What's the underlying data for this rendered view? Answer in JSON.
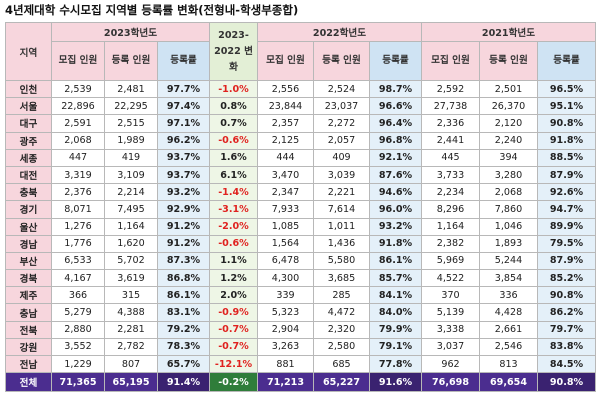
{
  "title": "4년제대학 수시모집 지역별 등록률 변화(전형내-학생부종합)",
  "header": {
    "region": "지역",
    "y2023": "2023학년도",
    "change": "2023-2022 변화",
    "y2022": "2022학년도",
    "y2021": "2021학년도",
    "recruit": "모집 인원",
    "enrolled": "등록 인원",
    "rate": "등록률"
  },
  "rows": [
    {
      "region": "인천",
      "r23": "2,539",
      "e23": "2,481",
      "rt23": "97.7%",
      "chg": "-1.0%",
      "r22": "2,556",
      "e22": "2,524",
      "rt22": "98.7%",
      "r21": "2,592",
      "e21": "2,501",
      "rt21": "96.5%"
    },
    {
      "region": "서울",
      "r23": "22,896",
      "e23": "22,295",
      "rt23": "97.4%",
      "chg": "0.8%",
      "r22": "23,844",
      "e22": "23,037",
      "rt22": "96.6%",
      "r21": "27,738",
      "e21": "26,370",
      "rt21": "95.1%"
    },
    {
      "region": "대구",
      "r23": "2,591",
      "e23": "2,515",
      "rt23": "97.1%",
      "chg": "0.7%",
      "r22": "2,357",
      "e22": "2,272",
      "rt22": "96.4%",
      "r21": "2,336",
      "e21": "2,120",
      "rt21": "90.8%"
    },
    {
      "region": "광주",
      "r23": "2,068",
      "e23": "1,989",
      "rt23": "96.2%",
      "chg": "-0.6%",
      "r22": "2,125",
      "e22": "2,057",
      "rt22": "96.8%",
      "r21": "2,441",
      "e21": "2,240",
      "rt21": "91.8%"
    },
    {
      "region": "세종",
      "r23": "447",
      "e23": "419",
      "rt23": "93.7%",
      "chg": "1.6%",
      "r22": "444",
      "e22": "409",
      "rt22": "92.1%",
      "r21": "445",
      "e21": "394",
      "rt21": "88.5%"
    },
    {
      "region": "대전",
      "r23": "3,319",
      "e23": "3,109",
      "rt23": "93.7%",
      "chg": "6.1%",
      "r22": "3,470",
      "e22": "3,039",
      "rt22": "87.6%",
      "r21": "3,733",
      "e21": "3,280",
      "rt21": "87.9%"
    },
    {
      "region": "충북",
      "r23": "2,376",
      "e23": "2,214",
      "rt23": "93.2%",
      "chg": "-1.4%",
      "r22": "2,347",
      "e22": "2,221",
      "rt22": "94.6%",
      "r21": "2,234",
      "e21": "2,068",
      "rt21": "92.6%"
    },
    {
      "region": "경기",
      "r23": "8,071",
      "e23": "7,495",
      "rt23": "92.9%",
      "chg": "-3.1%",
      "r22": "7,933",
      "e22": "7,614",
      "rt22": "96.0%",
      "r21": "8,296",
      "e21": "7,860",
      "rt21": "94.7%"
    },
    {
      "region": "울산",
      "r23": "1,276",
      "e23": "1,164",
      "rt23": "91.2%",
      "chg": "-2.0%",
      "r22": "1,085",
      "e22": "1,011",
      "rt22": "93.2%",
      "r21": "1,164",
      "e21": "1,046",
      "rt21": "89.9%"
    },
    {
      "region": "경남",
      "r23": "1,776",
      "e23": "1,620",
      "rt23": "91.2%",
      "chg": "-0.6%",
      "r22": "1,564",
      "e22": "1,436",
      "rt22": "91.8%",
      "r21": "2,382",
      "e21": "1,893",
      "rt21": "79.5%"
    },
    {
      "region": "부산",
      "r23": "6,533",
      "e23": "5,702",
      "rt23": "87.3%",
      "chg": "1.1%",
      "r22": "6,478",
      "e22": "5,580",
      "rt22": "86.1%",
      "r21": "5,969",
      "e21": "5,244",
      "rt21": "87.9%"
    },
    {
      "region": "경북",
      "r23": "4,167",
      "e23": "3,619",
      "rt23": "86.8%",
      "chg": "1.2%",
      "r22": "4,300",
      "e22": "3,685",
      "rt22": "85.7%",
      "r21": "4,522",
      "e21": "3,854",
      "rt21": "85.2%"
    },
    {
      "region": "제주",
      "r23": "366",
      "e23": "315",
      "rt23": "86.1%",
      "chg": "2.0%",
      "r22": "339",
      "e22": "285",
      "rt22": "84.1%",
      "r21": "370",
      "e21": "336",
      "rt21": "90.8%"
    },
    {
      "region": "충남",
      "r23": "5,279",
      "e23": "4,388",
      "rt23": "83.1%",
      "chg": "-0.9%",
      "r22": "5,323",
      "e22": "4,472",
      "rt22": "84.0%",
      "r21": "5,139",
      "e21": "4,428",
      "rt21": "86.2%"
    },
    {
      "region": "전북",
      "r23": "2,880",
      "e23": "2,281",
      "rt23": "79.2%",
      "chg": "-0.7%",
      "r22": "2,904",
      "e22": "2,320",
      "rt22": "79.9%",
      "r21": "3,338",
      "e21": "2,661",
      "rt21": "79.7%"
    },
    {
      "region": "강원",
      "r23": "3,552",
      "e23": "2,782",
      "rt23": "78.3%",
      "chg": "-0.7%",
      "r22": "3,263",
      "e22": "2,580",
      "rt22": "79.1%",
      "r21": "3,037",
      "e21": "2,546",
      "rt21": "83.8%"
    },
    {
      "region": "전남",
      "r23": "1,229",
      "e23": "807",
      "rt23": "65.7%",
      "chg": "-12.1%",
      "r22": "881",
      "e22": "685",
      "rt22": "77.8%",
      "r21": "962",
      "e21": "813",
      "rt21": "84.5%"
    }
  ],
  "total": {
    "region": "전체",
    "r23": "71,365",
    "e23": "65,195",
    "rt23": "91.4%",
    "chg": "-0.2%",
    "r22": "71,213",
    "e22": "65,227",
    "rt22": "91.6%",
    "r21": "76,698",
    "e21": "69,654",
    "rt21": "90.8%"
  }
}
